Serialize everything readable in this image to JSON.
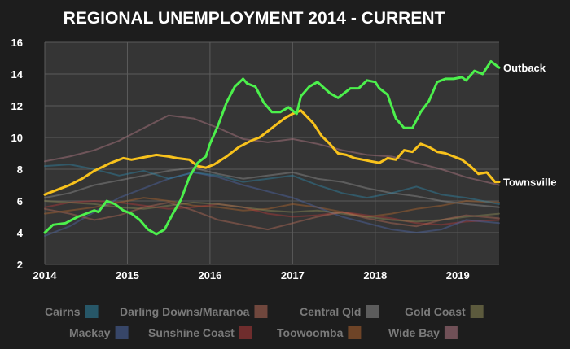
{
  "chart_data": {
    "type": "line",
    "title": "REGIONAL UNEMPLOYMENT 2014 - CURRENT",
    "xlabel": "",
    "ylabel": "",
    "xlim": [
      2014.0,
      2019.5
    ],
    "ylim": [
      2,
      16
    ],
    "x_ticks": [
      2014,
      2015,
      2016,
      2017,
      2018,
      2019
    ],
    "y_ticks": [
      2,
      4,
      6,
      8,
      10,
      12,
      14,
      16
    ],
    "grid": true,
    "legend_position": "bottom",
    "series": [
      {
        "name": "Outback",
        "label_at_end": true,
        "color": "#4cf04c",
        "width": 3,
        "x": [
          2014.0,
          2014.1,
          2014.25,
          2014.4,
          2014.5,
          2014.6,
          2014.65,
          2014.75,
          2014.85,
          2014.95,
          2015.05,
          2015.15,
          2015.25,
          2015.35,
          2015.45,
          2015.55,
          2015.65,
          2015.75,
          2015.85,
          2015.95,
          2016.0,
          2016.1,
          2016.2,
          2016.3,
          2016.4,
          2016.45,
          2016.55,
          2016.65,
          2016.75,
          2016.85,
          2016.95,
          2017.05,
          2017.1,
          2017.2,
          2017.3,
          2017.45,
          2017.55,
          2017.6,
          2017.7,
          2017.8,
          2017.9,
          2018.0,
          2018.05,
          2018.15,
          2018.25,
          2018.35,
          2018.45,
          2018.55,
          2018.65,
          2018.75,
          2018.85,
          2018.95,
          2019.05,
          2019.1,
          2019.2,
          2019.3,
          2019.4,
          2019.5
        ],
        "y": [
          4.0,
          4.5,
          4.6,
          5.0,
          5.2,
          5.4,
          5.3,
          6.0,
          5.8,
          5.4,
          5.2,
          4.8,
          4.2,
          3.9,
          4.2,
          5.2,
          6.1,
          7.5,
          8.4,
          8.8,
          9.6,
          10.8,
          12.2,
          13.2,
          13.7,
          13.4,
          13.2,
          12.2,
          11.6,
          11.6,
          11.9,
          11.5,
          12.6,
          13.2,
          13.5,
          12.8,
          12.5,
          12.7,
          13.1,
          13.1,
          13.6,
          13.5,
          13.1,
          12.7,
          11.2,
          10.6,
          10.6,
          11.6,
          12.3,
          13.5,
          13.7,
          13.7,
          13.8,
          13.6,
          14.2,
          14.0,
          14.8,
          14.4
        ]
      },
      {
        "name": "Townsville",
        "label_at_end": true,
        "color": "#f8c21c",
        "width": 3,
        "x": [
          2014.0,
          2014.15,
          2014.3,
          2014.45,
          2014.6,
          2014.8,
          2014.95,
          2015.05,
          2015.15,
          2015.25,
          2015.35,
          2015.5,
          2015.6,
          2015.75,
          2015.85,
          2015.95,
          2016.05,
          2016.2,
          2016.35,
          2016.5,
          2016.6,
          2016.75,
          2016.9,
          2017.0,
          2017.1,
          2017.25,
          2017.35,
          2017.45,
          2017.55,
          2017.65,
          2017.75,
          2017.85,
          2017.95,
          2018.05,
          2018.15,
          2018.25,
          2018.35,
          2018.45,
          2018.55,
          2018.65,
          2018.75,
          2018.85,
          2018.95,
          2019.05,
          2019.15,
          2019.25,
          2019.35,
          2019.45,
          2019.5
        ],
        "y": [
          6.4,
          6.7,
          7.0,
          7.4,
          7.9,
          8.4,
          8.7,
          8.6,
          8.7,
          8.8,
          8.9,
          8.8,
          8.7,
          8.6,
          8.2,
          8.1,
          8.3,
          8.8,
          9.4,
          9.8,
          10.0,
          10.6,
          11.2,
          11.5,
          11.7,
          10.9,
          10.1,
          9.6,
          9.0,
          8.9,
          8.7,
          8.6,
          8.5,
          8.4,
          8.7,
          8.6,
          9.2,
          9.1,
          9.6,
          9.4,
          9.1,
          9.0,
          8.8,
          8.6,
          8.2,
          7.7,
          7.8,
          7.2,
          7.2
        ]
      },
      {
        "name": "Cairns",
        "color": "#2f86a6",
        "width": 2,
        "opacity": 0.45,
        "x": [
          2014.0,
          2014.3,
          2014.6,
          2014.9,
          2015.2,
          2015.5,
          2015.8,
          2016.1,
          2016.4,
          2016.7,
          2017.0,
          2017.3,
          2017.6,
          2017.9,
          2018.2,
          2018.5,
          2018.8,
          2019.1,
          2019.5
        ],
        "y": [
          8.2,
          8.3,
          8.0,
          7.6,
          7.9,
          7.4,
          7.8,
          7.6,
          7.2,
          7.4,
          7.6,
          7.0,
          6.5,
          6.2,
          6.5,
          6.9,
          6.4,
          6.2,
          5.8
        ]
      },
      {
        "name": "Darling Downs/Maranoa",
        "color": "#b46a57",
        "width": 2,
        "opacity": 0.45,
        "x": [
          2014.0,
          2014.3,
          2014.6,
          2014.9,
          2015.2,
          2015.5,
          2015.8,
          2016.1,
          2016.4,
          2016.7,
          2017.0,
          2017.3,
          2017.6,
          2017.9,
          2018.2,
          2018.5,
          2018.8,
          2019.1,
          2019.5
        ],
        "y": [
          5.5,
          5.2,
          4.8,
          5.1,
          5.6,
          5.9,
          5.4,
          4.8,
          4.5,
          4.2,
          4.6,
          5.0,
          5.3,
          4.9,
          4.6,
          4.4,
          4.8,
          5.1,
          4.9
        ]
      },
      {
        "name": "Central Qld",
        "color": "#8f8f8f",
        "width": 2,
        "opacity": 0.45,
        "x": [
          2014.0,
          2014.3,
          2014.6,
          2014.9,
          2015.2,
          2015.5,
          2015.8,
          2016.1,
          2016.4,
          2016.7,
          2017.0,
          2017.3,
          2017.6,
          2017.9,
          2018.2,
          2018.5,
          2018.8,
          2019.1,
          2019.5
        ],
        "y": [
          6.2,
          6.5,
          7.0,
          7.3,
          7.6,
          7.9,
          8.1,
          7.7,
          7.4,
          7.6,
          7.8,
          7.4,
          7.2,
          6.8,
          6.5,
          6.3,
          6.0,
          5.8,
          5.6
        ]
      },
      {
        "name": "Gold Coast",
        "color": "#8f8c57",
        "width": 2,
        "opacity": 0.45,
        "x": [
          2014.0,
          2014.3,
          2014.6,
          2014.9,
          2015.2,
          2015.5,
          2015.8,
          2016.1,
          2016.4,
          2016.7,
          2017.0,
          2017.3,
          2017.6,
          2017.9,
          2018.2,
          2018.5,
          2018.8,
          2019.1,
          2019.5
        ],
        "y": [
          6.0,
          5.9,
          5.8,
          5.6,
          5.5,
          5.7,
          5.9,
          5.8,
          5.6,
          5.4,
          5.3,
          5.4,
          5.2,
          5.0,
          4.8,
          4.7,
          4.8,
          5.0,
          5.2
        ]
      },
      {
        "name": "Mackay",
        "color": "#4d67a6",
        "width": 2,
        "opacity": 0.45,
        "x": [
          2014.0,
          2014.3,
          2014.6,
          2014.9,
          2015.2,
          2015.5,
          2015.8,
          2016.1,
          2016.4,
          2016.7,
          2017.0,
          2017.3,
          2017.6,
          2017.9,
          2018.2,
          2018.5,
          2018.8,
          2019.1,
          2019.5
        ],
        "y": [
          3.8,
          4.4,
          5.3,
          6.2,
          6.8,
          7.4,
          7.8,
          7.5,
          7.0,
          6.6,
          6.2,
          5.6,
          5.0,
          4.6,
          4.2,
          4.0,
          4.2,
          4.8,
          4.6
        ]
      },
      {
        "name": "Sunshine Coast",
        "color": "#b23a3a",
        "width": 2,
        "opacity": 0.45,
        "x": [
          2014.0,
          2014.3,
          2014.6,
          2014.9,
          2015.2,
          2015.5,
          2015.8,
          2016.1,
          2016.4,
          2016.7,
          2017.0,
          2017.3,
          2017.6,
          2017.9,
          2018.2,
          2018.5,
          2018.8,
          2019.1,
          2019.5
        ],
        "y": [
          5.6,
          5.9,
          6.0,
          5.9,
          5.7,
          5.5,
          5.6,
          5.8,
          5.6,
          5.2,
          5.0,
          5.1,
          5.3,
          5.1,
          4.9,
          4.6,
          4.5,
          4.7,
          4.8
        ]
      },
      {
        "name": "Toowoomba",
        "color": "#b0652f",
        "width": 2,
        "opacity": 0.45,
        "x": [
          2014.0,
          2014.3,
          2014.6,
          2014.9,
          2015.2,
          2015.5,
          2015.8,
          2016.1,
          2016.4,
          2016.7,
          2017.0,
          2017.3,
          2017.6,
          2017.9,
          2018.2,
          2018.5,
          2018.8,
          2019.1,
          2019.5
        ],
        "y": [
          5.2,
          5.4,
          5.6,
          5.9,
          6.2,
          6.0,
          5.7,
          5.6,
          5.4,
          5.5,
          5.8,
          5.6,
          5.3,
          5.0,
          5.2,
          5.5,
          5.7,
          6.0,
          5.9
        ]
      },
      {
        "name": "Wide Bay",
        "color": "#b47a86",
        "width": 2,
        "opacity": 0.45,
        "x": [
          2014.0,
          2014.3,
          2014.6,
          2014.9,
          2015.2,
          2015.5,
          2015.8,
          2016.1,
          2016.4,
          2016.7,
          2017.0,
          2017.3,
          2017.6,
          2017.9,
          2018.2,
          2018.5,
          2018.8,
          2019.1,
          2019.5
        ],
        "y": [
          8.5,
          8.8,
          9.2,
          9.8,
          10.6,
          11.4,
          11.2,
          10.6,
          9.9,
          9.7,
          9.9,
          9.6,
          9.2,
          8.9,
          8.8,
          8.4,
          8.0,
          7.5,
          7.0
        ]
      }
    ],
    "legend": [
      {
        "label": "Cairns",
        "color": "#2f86a6"
      },
      {
        "label": "Darling Downs/Maranoa",
        "color": "#b46a57"
      },
      {
        "label": "Central Qld",
        "color": "#8f8f8f"
      },
      {
        "label": "Gold Coast",
        "color": "#8f8c57"
      },
      {
        "label": "Mackay",
        "color": "#4d67a6"
      },
      {
        "label": "Sunshine Coast",
        "color": "#b23a3a"
      },
      {
        "label": "Toowoomba",
        "color": "#b0652f"
      },
      {
        "label": "Wide Bay",
        "color": "#b47a86"
      }
    ]
  },
  "colors": {
    "background": "#1d1d1d",
    "plot_background": "#353535",
    "grid": "#5c5c5c",
    "text": "#ffffff",
    "legend_text": "#7a7a7a"
  }
}
